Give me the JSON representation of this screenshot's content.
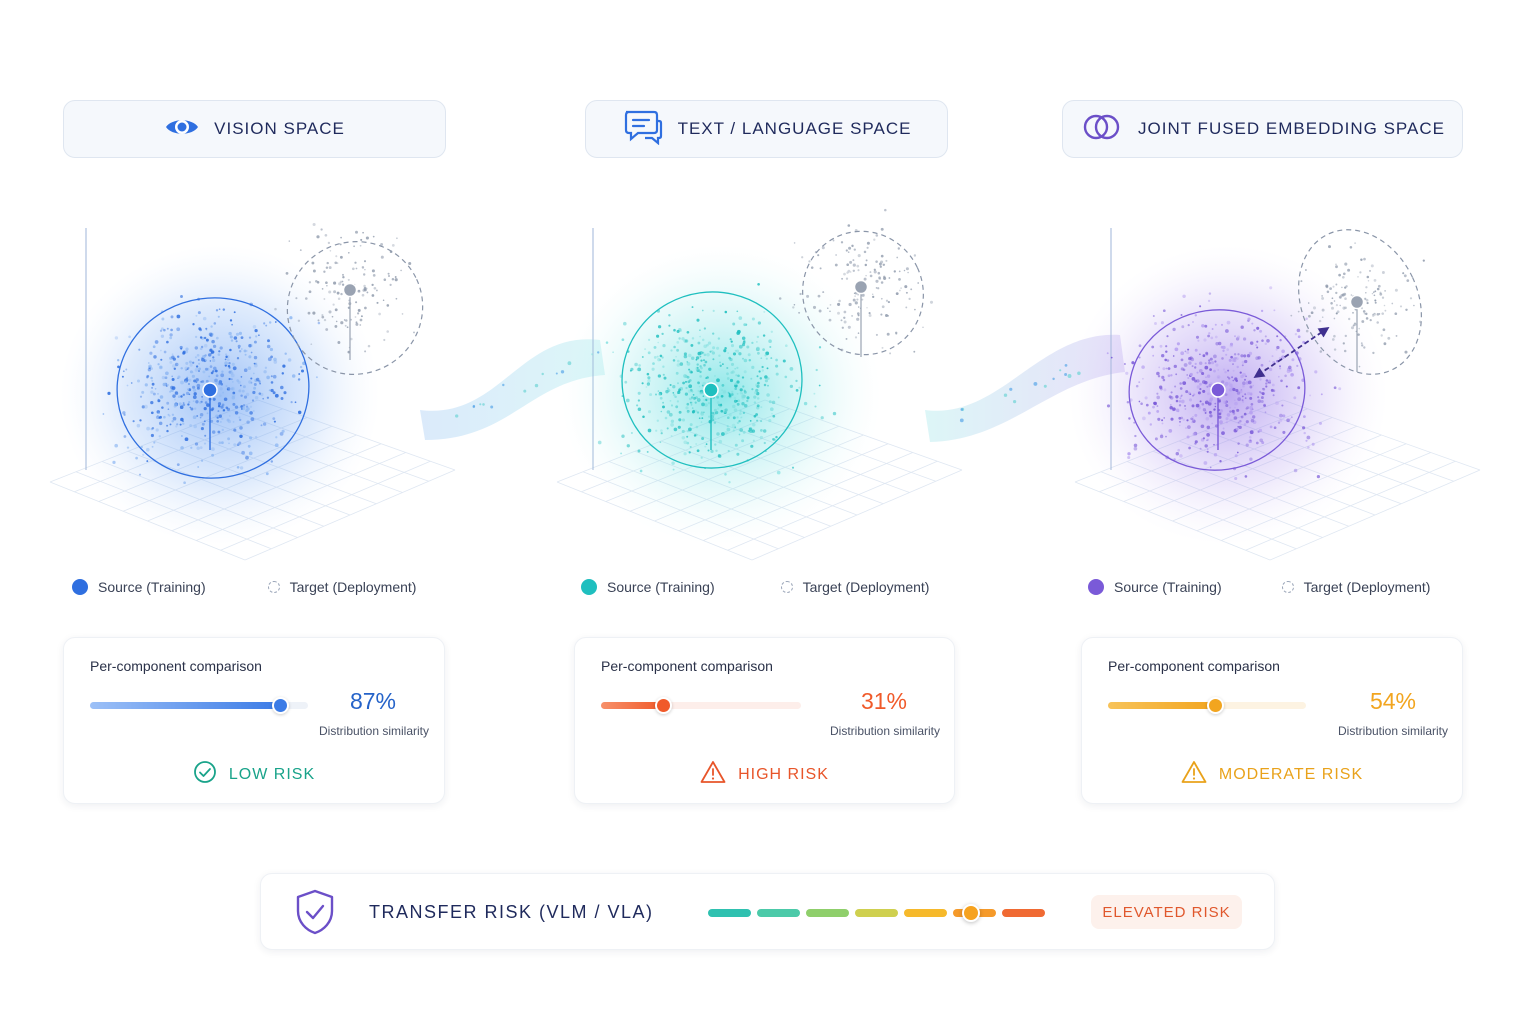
{
  "panels": [
    {
      "id": "vision",
      "header": "VISION SPACE",
      "icon": "eye-icon",
      "color": "#2f6fe0",
      "legend": {
        "source": "Source (Training)",
        "target": "Target (Deployment)"
      },
      "card": {
        "title": "Per-component comparison",
        "similarity": 0.87,
        "percent_text": "87%",
        "similarity_label": "Distribution similarity",
        "risk_label": "LOW RISK",
        "risk_icon": "check-circle-icon",
        "color": "#2563c9",
        "risk_color": "#19a38a"
      }
    },
    {
      "id": "text",
      "header": "TEXT / LANGUAGE SPACE",
      "icon": "chat-bubbles-icon",
      "color": "#1fbfbf",
      "legend": {
        "source": "Source (Training)",
        "target": "Target (Deployment)"
      },
      "card": {
        "title": "Per-component comparison",
        "similarity": 0.31,
        "percent_text": "31%",
        "similarity_label": "Distribution similarity",
        "risk_label": "HIGH RISK",
        "risk_icon": "warning-triangle-icon",
        "color": "#f05a2a",
        "risk_color": "#e8552a"
      }
    },
    {
      "id": "joint",
      "header": "JOINT FUSED EMBEDDING SPACE",
      "icon": "overlapping-circles-icon",
      "color": "#7a5ad8",
      "legend": {
        "source": "Source (Training)",
        "target": "Target (Deployment)"
      },
      "card": {
        "title": "Per-component comparison",
        "similarity": 0.54,
        "percent_text": "54%",
        "similarity_label": "Distribution similarity",
        "risk_label": "MODERATE RISK",
        "risk_icon": "warning-triangle-icon",
        "color": "#f2a51f",
        "risk_color": "#e9a21b"
      }
    }
  ],
  "transfer": {
    "icon": "shield-check-icon",
    "title": "TRANSFER RISK (VLM / VLA)",
    "level": 0.78,
    "segment_colors": [
      "#2fc1b0",
      "#4ccaa9",
      "#8fcf6b",
      "#cfd04f",
      "#f6b92b",
      "#f59a2a",
      "#f06a33"
    ],
    "badge": "ELEVATED RISK",
    "badge_color": "#e0572c"
  }
}
